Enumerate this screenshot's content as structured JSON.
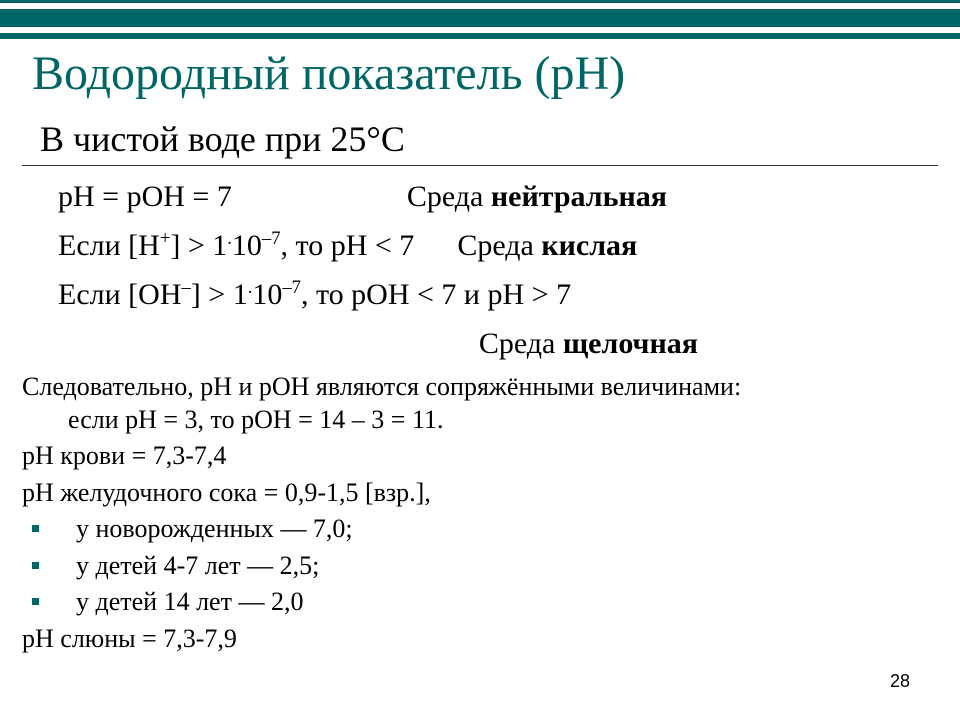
{
  "colors": {
    "accent": "#006565",
    "text": "#000000",
    "background": "#ffffff"
  },
  "title": "Водородный показатель (рН)",
  "subtitle": "В чистой воде при 25°С",
  "line1": {
    "lhs": "рН = рОН = 7",
    "rhs_pre": "Среда ",
    "rhs_bold": "нейтральная"
  },
  "line2": {
    "a": "Если [H",
    "b": "] > 1",
    "c": "10",
    "d": ", то рН < 7",
    "rhs_pre": "Среда ",
    "rhs_bold": "кислая"
  },
  "line3": {
    "a": "Если [OH",
    "b": "] > 1",
    "c": "10",
    "d": ", то pOH < 7 и pH > 7"
  },
  "env_alk_pre": "Среда ",
  "env_alk_bold": "щелочная",
  "body": {
    "p1a": "Следовательно, рН и рОН являются сопряжёнными величинами:",
    "p1b": "если рН = 3, то рОН = 14 – 3 = 11.",
    "p2": "pH крови = 7,3-7,4",
    "p3": "рН желудочного сока = 0,9-1,5 [взр.],",
    "b1": "у новорожденных — 7,0;",
    "b2": "у детей 4-7 лет — 2,5;",
    "b3": " у детей 14 лет — 2,0",
    "p4": "рН слюны = 7,3-7,9"
  },
  "sup_plus": "+",
  "sup_minus": "–",
  "sup_dot": ".",
  "sup_m7": "–7",
  "page_number": "28"
}
